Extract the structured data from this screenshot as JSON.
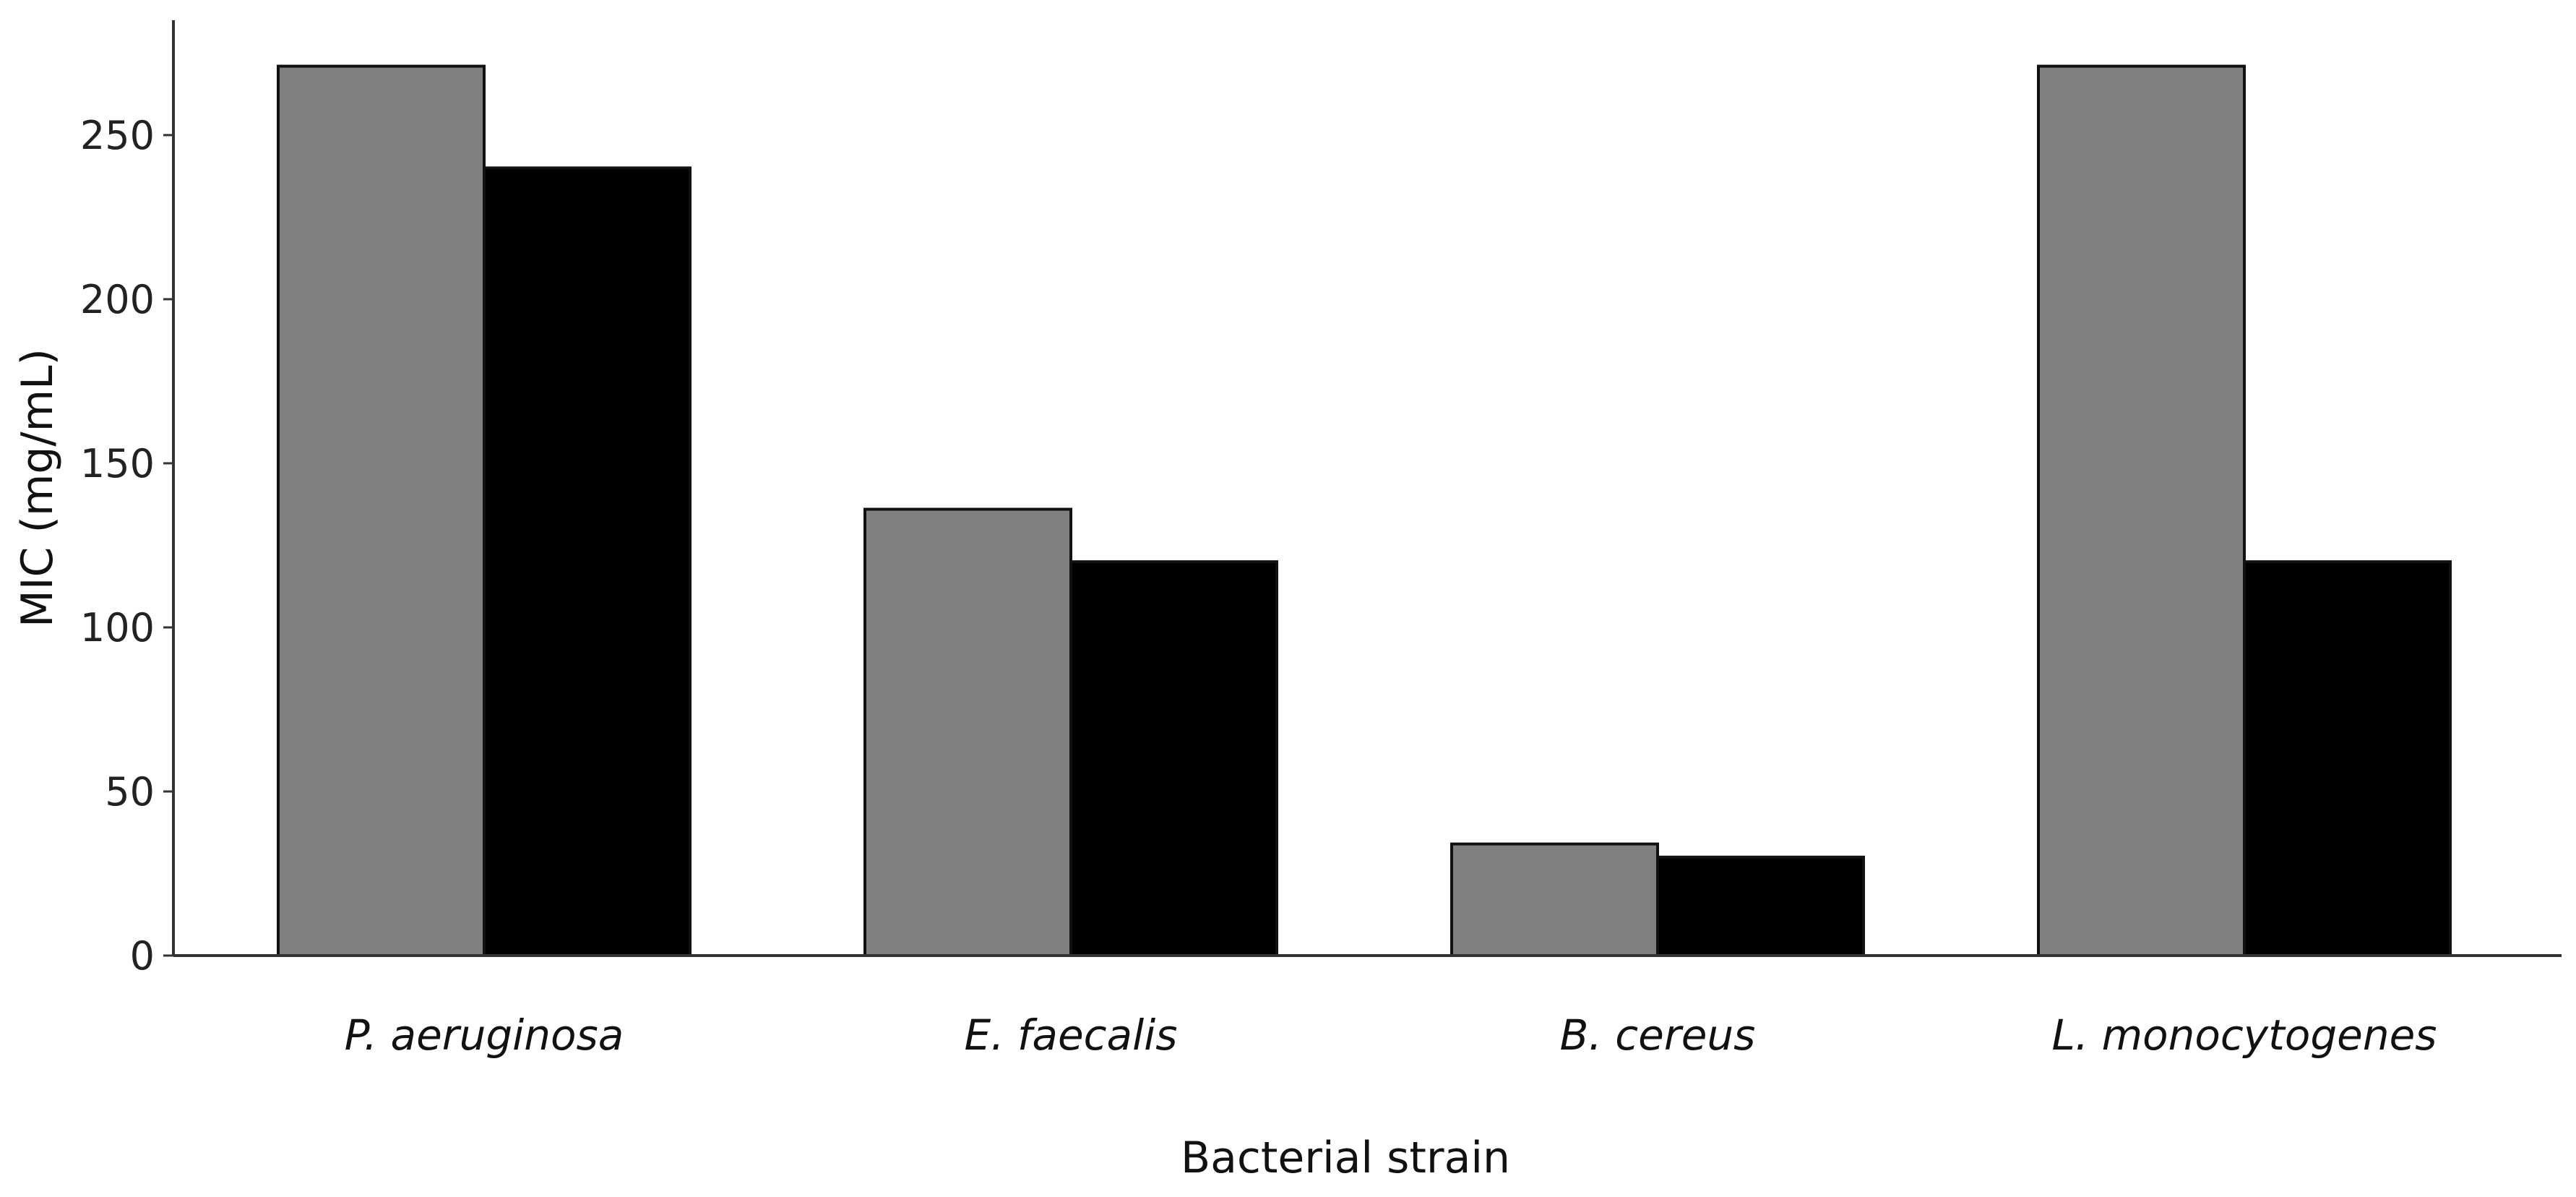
{
  "chart_data": {
    "type": "bar",
    "title": "",
    "xlabel": "Bacterial strain",
    "ylabel": "MIC (mg/mL)",
    "categories": [
      "P. aeruginosa",
      "E. faecalis",
      "B. cereus",
      "L. monocytogenes"
    ],
    "series": [
      {
        "values": [
          271,
          136,
          34,
          271
        ],
        "color": "#808080"
      },
      {
        "values": [
          240,
          120,
          30,
          120
        ],
        "color": "#000000"
      }
    ],
    "ylim": [
      0,
      285
    ],
    "yticks": [
      0,
      50,
      100,
      150,
      200,
      250
    ],
    "grid": false,
    "legend": "none"
  }
}
